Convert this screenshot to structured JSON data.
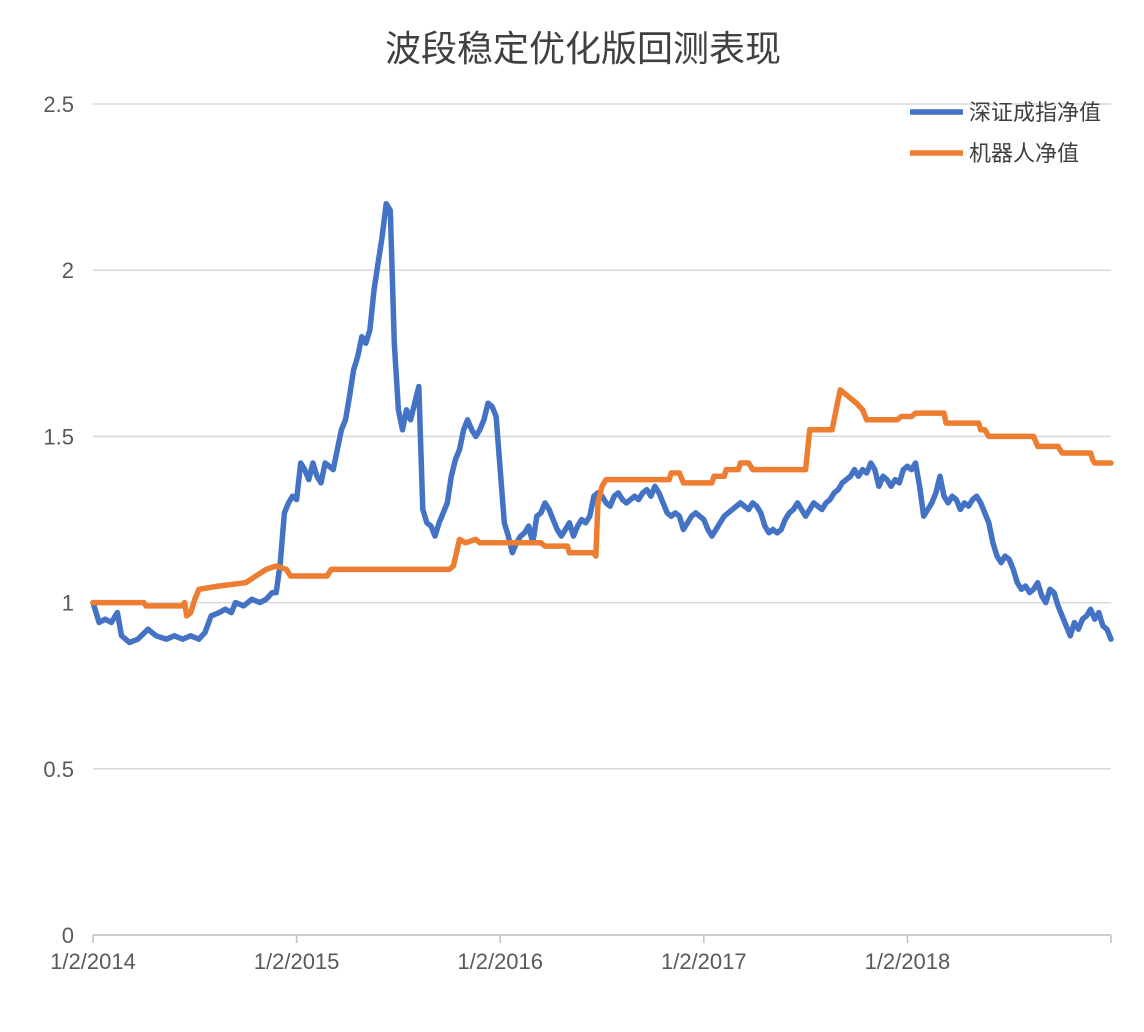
{
  "chart_data": {
    "type": "line",
    "title": "波段稳定优化版回测表现",
    "xlabel": "",
    "ylabel": "",
    "ylim": [
      0,
      2.5
    ],
    "yticks": [
      "0",
      "0.5",
      "1",
      "1.5",
      "2",
      "2.5"
    ],
    "xticks": [
      "1/2/2014",
      "1/2/2015",
      "1/2/2016",
      "1/2/2017",
      "1/2/2018"
    ],
    "x_range": [
      2014.0,
      2019.0
    ],
    "grid": true,
    "legend_position": "top-right",
    "series": [
      {
        "name": "深证成指净值",
        "color": "#4472C4",
        "points": [
          [
            2014.0,
            1.0
          ],
          [
            2014.03,
            0.94
          ],
          [
            2014.06,
            0.95
          ],
          [
            2014.09,
            0.94
          ],
          [
            2014.12,
            0.97
          ],
          [
            2014.14,
            0.9
          ],
          [
            2014.18,
            0.88
          ],
          [
            2014.22,
            0.89
          ],
          [
            2014.27,
            0.92
          ],
          [
            2014.31,
            0.9
          ],
          [
            2014.36,
            0.89
          ],
          [
            2014.4,
            0.9
          ],
          [
            2014.44,
            0.89
          ],
          [
            2014.48,
            0.9
          ],
          [
            2014.52,
            0.89
          ],
          [
            2014.55,
            0.91
          ],
          [
            2014.58,
            0.96
          ],
          [
            2014.62,
            0.97
          ],
          [
            2014.65,
            0.98
          ],
          [
            2014.68,
            0.97
          ],
          [
            2014.7,
            1.0
          ],
          [
            2014.74,
            0.99
          ],
          [
            2014.78,
            1.01
          ],
          [
            2014.82,
            1.0
          ],
          [
            2014.85,
            1.01
          ],
          [
            2014.88,
            1.03
          ],
          [
            2014.9,
            1.03
          ],
          [
            2014.92,
            1.12
          ],
          [
            2014.94,
            1.27
          ],
          [
            2014.96,
            1.3
          ],
          [
            2014.98,
            1.32
          ],
          [
            2015.0,
            1.31
          ],
          [
            2015.02,
            1.42
          ],
          [
            2015.04,
            1.4
          ],
          [
            2015.06,
            1.37
          ],
          [
            2015.08,
            1.42
          ],
          [
            2015.1,
            1.38
          ],
          [
            2015.12,
            1.36
          ],
          [
            2015.14,
            1.42
          ],
          [
            2015.16,
            1.41
          ],
          [
            2015.18,
            1.4
          ],
          [
            2015.2,
            1.46
          ],
          [
            2015.22,
            1.52
          ],
          [
            2015.24,
            1.55
          ],
          [
            2015.26,
            1.62
          ],
          [
            2015.28,
            1.7
          ],
          [
            2015.3,
            1.74
          ],
          [
            2015.32,
            1.8
          ],
          [
            2015.34,
            1.78
          ],
          [
            2015.36,
            1.82
          ],
          [
            2015.38,
            1.94
          ],
          [
            2015.4,
            2.02
          ],
          [
            2015.42,
            2.1
          ],
          [
            2015.44,
            2.2
          ],
          [
            2015.46,
            2.18
          ],
          [
            2015.48,
            1.78
          ],
          [
            2015.5,
            1.58
          ],
          [
            2015.52,
            1.52
          ],
          [
            2015.54,
            1.58
          ],
          [
            2015.56,
            1.55
          ],
          [
            2015.58,
            1.6
          ],
          [
            2015.6,
            1.65
          ],
          [
            2015.62,
            1.28
          ],
          [
            2015.64,
            1.24
          ],
          [
            2015.66,
            1.23
          ],
          [
            2015.68,
            1.2
          ],
          [
            2015.7,
            1.24
          ],
          [
            2015.72,
            1.27
          ],
          [
            2015.74,
            1.3
          ],
          [
            2015.76,
            1.38
          ],
          [
            2015.78,
            1.43
          ],
          [
            2015.8,
            1.46
          ],
          [
            2015.82,
            1.52
          ],
          [
            2015.84,
            1.55
          ],
          [
            2015.86,
            1.52
          ],
          [
            2015.88,
            1.5
          ],
          [
            2015.9,
            1.52
          ],
          [
            2015.92,
            1.55
          ],
          [
            2015.94,
            1.6
          ],
          [
            2015.96,
            1.59
          ],
          [
            2015.98,
            1.56
          ],
          [
            2016.0,
            1.4
          ],
          [
            2016.02,
            1.24
          ],
          [
            2016.04,
            1.2
          ],
          [
            2016.06,
            1.15
          ],
          [
            2016.08,
            1.18
          ],
          [
            2016.1,
            1.2
          ],
          [
            2016.12,
            1.21
          ],
          [
            2016.14,
            1.23
          ],
          [
            2016.16,
            1.18
          ],
          [
            2016.18,
            1.26
          ],
          [
            2016.2,
            1.27
          ],
          [
            2016.22,
            1.3
          ],
          [
            2016.24,
            1.28
          ],
          [
            2016.26,
            1.25
          ],
          [
            2016.28,
            1.22
          ],
          [
            2016.3,
            1.2
          ],
          [
            2016.32,
            1.22
          ],
          [
            2016.34,
            1.24
          ],
          [
            2016.36,
            1.2
          ],
          [
            2016.38,
            1.23
          ],
          [
            2016.4,
            1.25
          ],
          [
            2016.42,
            1.24
          ],
          [
            2016.44,
            1.26
          ],
          [
            2016.46,
            1.32
          ],
          [
            2016.48,
            1.33
          ],
          [
            2016.5,
            1.32
          ],
          [
            2016.52,
            1.3
          ],
          [
            2016.54,
            1.29
          ],
          [
            2016.56,
            1.32
          ],
          [
            2016.58,
            1.33
          ],
          [
            2016.6,
            1.31
          ],
          [
            2016.62,
            1.3
          ],
          [
            2016.64,
            1.31
          ],
          [
            2016.66,
            1.32
          ],
          [
            2016.68,
            1.31
          ],
          [
            2016.7,
            1.33
          ],
          [
            2016.72,
            1.34
          ],
          [
            2016.74,
            1.32
          ],
          [
            2016.76,
            1.35
          ],
          [
            2016.78,
            1.33
          ],
          [
            2016.8,
            1.3
          ],
          [
            2016.82,
            1.27
          ],
          [
            2016.84,
            1.26
          ],
          [
            2016.86,
            1.27
          ],
          [
            2016.88,
            1.26
          ],
          [
            2016.9,
            1.22
          ],
          [
            2016.92,
            1.24
          ],
          [
            2016.94,
            1.26
          ],
          [
            2016.96,
            1.27
          ],
          [
            2016.98,
            1.26
          ],
          [
            2017.0,
            1.25
          ],
          [
            2017.02,
            1.22
          ],
          [
            2017.04,
            1.2
          ],
          [
            2017.06,
            1.22
          ],
          [
            2017.08,
            1.24
          ],
          [
            2017.1,
            1.26
          ],
          [
            2017.12,
            1.27
          ],
          [
            2017.14,
            1.28
          ],
          [
            2017.16,
            1.29
          ],
          [
            2017.18,
            1.3
          ],
          [
            2017.2,
            1.29
          ],
          [
            2017.22,
            1.28
          ],
          [
            2017.24,
            1.3
          ],
          [
            2017.26,
            1.29
          ],
          [
            2017.28,
            1.27
          ],
          [
            2017.3,
            1.23
          ],
          [
            2017.32,
            1.21
          ],
          [
            2017.34,
            1.22
          ],
          [
            2017.36,
            1.21
          ],
          [
            2017.38,
            1.22
          ],
          [
            2017.4,
            1.25
          ],
          [
            2017.42,
            1.27
          ],
          [
            2017.44,
            1.28
          ],
          [
            2017.46,
            1.3
          ],
          [
            2017.48,
            1.28
          ],
          [
            2017.5,
            1.26
          ],
          [
            2017.52,
            1.28
          ],
          [
            2017.54,
            1.3
          ],
          [
            2017.56,
            1.29
          ],
          [
            2017.58,
            1.28
          ],
          [
            2017.6,
            1.3
          ],
          [
            2017.62,
            1.31
          ],
          [
            2017.64,
            1.33
          ],
          [
            2017.66,
            1.34
          ],
          [
            2017.68,
            1.36
          ],
          [
            2017.7,
            1.37
          ],
          [
            2017.72,
            1.38
          ],
          [
            2017.74,
            1.4
          ],
          [
            2017.76,
            1.38
          ],
          [
            2017.78,
            1.4
          ],
          [
            2017.8,
            1.39
          ],
          [
            2017.82,
            1.42
          ],
          [
            2017.84,
            1.4
          ],
          [
            2017.86,
            1.35
          ],
          [
            2017.88,
            1.38
          ],
          [
            2017.9,
            1.37
          ],
          [
            2017.92,
            1.35
          ],
          [
            2017.94,
            1.37
          ],
          [
            2017.96,
            1.36
          ],
          [
            2017.98,
            1.4
          ],
          [
            2018.0,
            1.41
          ],
          [
            2018.02,
            1.4
          ],
          [
            2018.04,
            1.42
          ],
          [
            2018.06,
            1.35
          ],
          [
            2018.08,
            1.26
          ],
          [
            2018.1,
            1.28
          ],
          [
            2018.12,
            1.3
          ],
          [
            2018.14,
            1.33
          ],
          [
            2018.16,
            1.38
          ],
          [
            2018.18,
            1.32
          ],
          [
            2018.2,
            1.3
          ],
          [
            2018.22,
            1.32
          ],
          [
            2018.24,
            1.31
          ],
          [
            2018.26,
            1.28
          ],
          [
            2018.28,
            1.3
          ],
          [
            2018.3,
            1.29
          ],
          [
            2018.32,
            1.31
          ],
          [
            2018.34,
            1.32
          ],
          [
            2018.36,
            1.3
          ],
          [
            2018.38,
            1.27
          ],
          [
            2018.4,
            1.24
          ],
          [
            2018.42,
            1.18
          ],
          [
            2018.44,
            1.14
          ],
          [
            2018.46,
            1.12
          ],
          [
            2018.48,
            1.14
          ],
          [
            2018.5,
            1.13
          ],
          [
            2018.52,
            1.1
          ],
          [
            2018.54,
            1.06
          ],
          [
            2018.56,
            1.04
          ],
          [
            2018.58,
            1.05
          ],
          [
            2018.6,
            1.03
          ],
          [
            2018.62,
            1.04
          ],
          [
            2018.64,
            1.06
          ],
          [
            2018.66,
            1.02
          ],
          [
            2018.68,
            1.0
          ],
          [
            2018.7,
            1.04
          ],
          [
            2018.72,
            1.03
          ],
          [
            2018.74,
            0.99
          ],
          [
            2018.76,
            0.96
          ],
          [
            2018.78,
            0.93
          ],
          [
            2018.8,
            0.9
          ],
          [
            2018.82,
            0.94
          ],
          [
            2018.84,
            0.92
          ],
          [
            2018.86,
            0.95
          ],
          [
            2018.88,
            0.96
          ],
          [
            2018.9,
            0.98
          ],
          [
            2018.92,
            0.95
          ],
          [
            2018.94,
            0.97
          ],
          [
            2018.96,
            0.93
          ],
          [
            2018.98,
            0.92
          ],
          [
            2019.0,
            0.89
          ]
        ]
      },
      {
        "name": "机器人净值",
        "color": "#ED7D31",
        "points": [
          [
            2014.0,
            1.0
          ],
          [
            2014.25,
            1.0
          ],
          [
            2014.26,
            0.99
          ],
          [
            2014.44,
            0.99
          ],
          [
            2014.45,
            1.0
          ],
          [
            2014.46,
            0.96
          ],
          [
            2014.48,
            0.97
          ],
          [
            2014.5,
            1.01
          ],
          [
            2014.52,
            1.04
          ],
          [
            2014.62,
            1.05
          ],
          [
            2014.75,
            1.06
          ],
          [
            2014.8,
            1.08
          ],
          [
            2014.85,
            1.1
          ],
          [
            2014.9,
            1.11
          ],
          [
            2014.95,
            1.1
          ],
          [
            2014.97,
            1.08
          ],
          [
            2015.15,
            1.08
          ],
          [
            2015.17,
            1.1
          ],
          [
            2015.75,
            1.1
          ],
          [
            2015.77,
            1.11
          ],
          [
            2015.8,
            1.19
          ],
          [
            2015.83,
            1.18
          ],
          [
            2015.88,
            1.19
          ],
          [
            2015.9,
            1.18
          ],
          [
            2016.2,
            1.18
          ],
          [
            2016.22,
            1.17
          ],
          [
            2016.33,
            1.17
          ],
          [
            2016.34,
            1.15
          ],
          [
            2016.46,
            1.15
          ],
          [
            2016.47,
            1.14
          ],
          [
            2016.48,
            1.3
          ],
          [
            2016.5,
            1.35
          ],
          [
            2016.52,
            1.37
          ],
          [
            2016.83,
            1.37
          ],
          [
            2016.84,
            1.39
          ],
          [
            2016.88,
            1.39
          ],
          [
            2016.9,
            1.36
          ],
          [
            2017.04,
            1.36
          ],
          [
            2017.05,
            1.38
          ],
          [
            2017.1,
            1.38
          ],
          [
            2017.11,
            1.4
          ],
          [
            2017.17,
            1.4
          ],
          [
            2017.18,
            1.42
          ],
          [
            2017.22,
            1.42
          ],
          [
            2017.24,
            1.4
          ],
          [
            2017.5,
            1.4
          ],
          [
            2017.52,
            1.52
          ],
          [
            2017.63,
            1.52
          ],
          [
            2017.65,
            1.58
          ],
          [
            2017.67,
            1.64
          ],
          [
            2017.71,
            1.62
          ],
          [
            2017.75,
            1.6
          ],
          [
            2017.78,
            1.58
          ],
          [
            2017.8,
            1.55
          ],
          [
            2017.95,
            1.55
          ],
          [
            2017.97,
            1.56
          ],
          [
            2018.02,
            1.56
          ],
          [
            2018.04,
            1.57
          ],
          [
            2018.18,
            1.57
          ],
          [
            2018.19,
            1.54
          ],
          [
            2018.35,
            1.54
          ],
          [
            2018.36,
            1.52
          ],
          [
            2018.38,
            1.52
          ],
          [
            2018.4,
            1.5
          ],
          [
            2018.62,
            1.5
          ],
          [
            2018.64,
            1.47
          ],
          [
            2018.74,
            1.47
          ],
          [
            2018.76,
            1.45
          ],
          [
            2018.9,
            1.45
          ],
          [
            2018.91,
            1.43
          ],
          [
            2018.92,
            1.42
          ],
          [
            2019.0,
            1.42
          ]
        ]
      }
    ]
  }
}
